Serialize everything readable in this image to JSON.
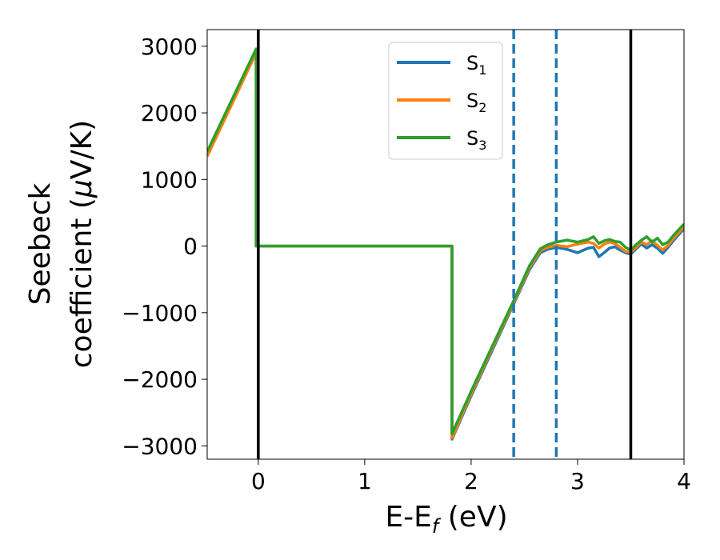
{
  "chart_data": {
    "type": "line",
    "title": "",
    "xlabel": {
      "prefix": "E-E",
      "sub": "f",
      "suffix": " (eV)"
    },
    "ylabel": {
      "line1": "Seebeck",
      "line2_prefix": "coefficient  (",
      "line2_mu": "μ",
      "line2_suffix": "V/K)"
    },
    "xlim": [
      -0.48,
      4.0
    ],
    "ylim": [
      -3200,
      3250
    ],
    "xticks": [
      0,
      1,
      2,
      3,
      4
    ],
    "xtick_labels": [
      "0",
      "1",
      "2",
      "3",
      "4"
    ],
    "yticks": [
      3000,
      2000,
      1000,
      0,
      -1000,
      -2000,
      -3000
    ],
    "ytick_labels": [
      "3000",
      "2000",
      "1000",
      "0",
      "−1000",
      "−2000",
      "−3000"
    ],
    "grid": false,
    "legend_position": "top-center",
    "vlines": [
      {
        "x": 0.0,
        "style": "solid",
        "color": "#000000"
      },
      {
        "x": 3.5,
        "style": "solid",
        "color": "#000000"
      },
      {
        "x": 2.4,
        "style": "dashed",
        "color": "#1f77b4"
      },
      {
        "x": 2.8,
        "style": "dashed",
        "color": "#1f77b4"
      }
    ],
    "series": [
      {
        "name": "S",
        "sub": "1",
        "color": "#1f77b4",
        "x": [
          -0.48,
          -0.02,
          -0.02,
          1.82,
          1.82,
          2.0,
          2.2,
          2.4,
          2.55,
          2.65,
          2.72,
          2.8,
          2.9,
          3.0,
          3.1,
          3.15,
          3.2,
          3.25,
          3.3,
          3.35,
          3.4,
          3.45,
          3.5,
          3.55,
          3.6,
          3.65,
          3.7,
          3.75,
          3.8,
          3.85,
          3.9,
          4.0
        ],
        "y": [
          1350,
          2920,
          0,
          0,
          -2900,
          -2250,
          -1560,
          -870,
          -350,
          -100,
          -50,
          -20,
          -50,
          -100,
          -30,
          -20,
          -160,
          -100,
          -30,
          -10,
          -60,
          -100,
          -120,
          -40,
          30,
          -30,
          20,
          -30,
          -110,
          -20,
          80,
          260
        ]
      },
      {
        "name": "S",
        "sub": "2",
        "color": "#ff7f0e",
        "x": [
          -0.48,
          -0.02,
          -0.02,
          1.82,
          1.82,
          2.0,
          2.2,
          2.4,
          2.55,
          2.65,
          2.72,
          2.8,
          2.9,
          3.0,
          3.1,
          3.15,
          3.2,
          3.25,
          3.3,
          3.35,
          3.4,
          3.45,
          3.5,
          3.55,
          3.6,
          3.65,
          3.7,
          3.75,
          3.8,
          3.85,
          3.9,
          4.0
        ],
        "y": [
          1350,
          2900,
          0,
          0,
          -2880,
          -2220,
          -1530,
          -850,
          -320,
          -70,
          -20,
          10,
          -10,
          30,
          60,
          40,
          -30,
          30,
          60,
          40,
          -20,
          -80,
          -90,
          -20,
          60,
          20,
          80,
          10,
          -60,
          10,
          110,
          290
        ]
      },
      {
        "name": "S",
        "sub": "3",
        "color": "#2ca02c",
        "x": [
          -0.48,
          -0.02,
          -0.02,
          1.82,
          1.82,
          2.0,
          2.2,
          2.4,
          2.55,
          2.65,
          2.72,
          2.8,
          2.9,
          3.0,
          3.1,
          3.15,
          3.2,
          3.25,
          3.3,
          3.35,
          3.4,
          3.45,
          3.5,
          3.55,
          3.6,
          3.65,
          3.7,
          3.75,
          3.8,
          3.85,
          3.9,
          4.0
        ],
        "y": [
          1420,
          2960,
          0,
          0,
          -2820,
          -2180,
          -1500,
          -820,
          -290,
          -40,
          20,
          60,
          90,
          60,
          100,
          140,
          40,
          80,
          100,
          70,
          60,
          -20,
          -60,
          20,
          90,
          140,
          60,
          120,
          20,
          60,
          160,
          330
        ]
      }
    ]
  }
}
